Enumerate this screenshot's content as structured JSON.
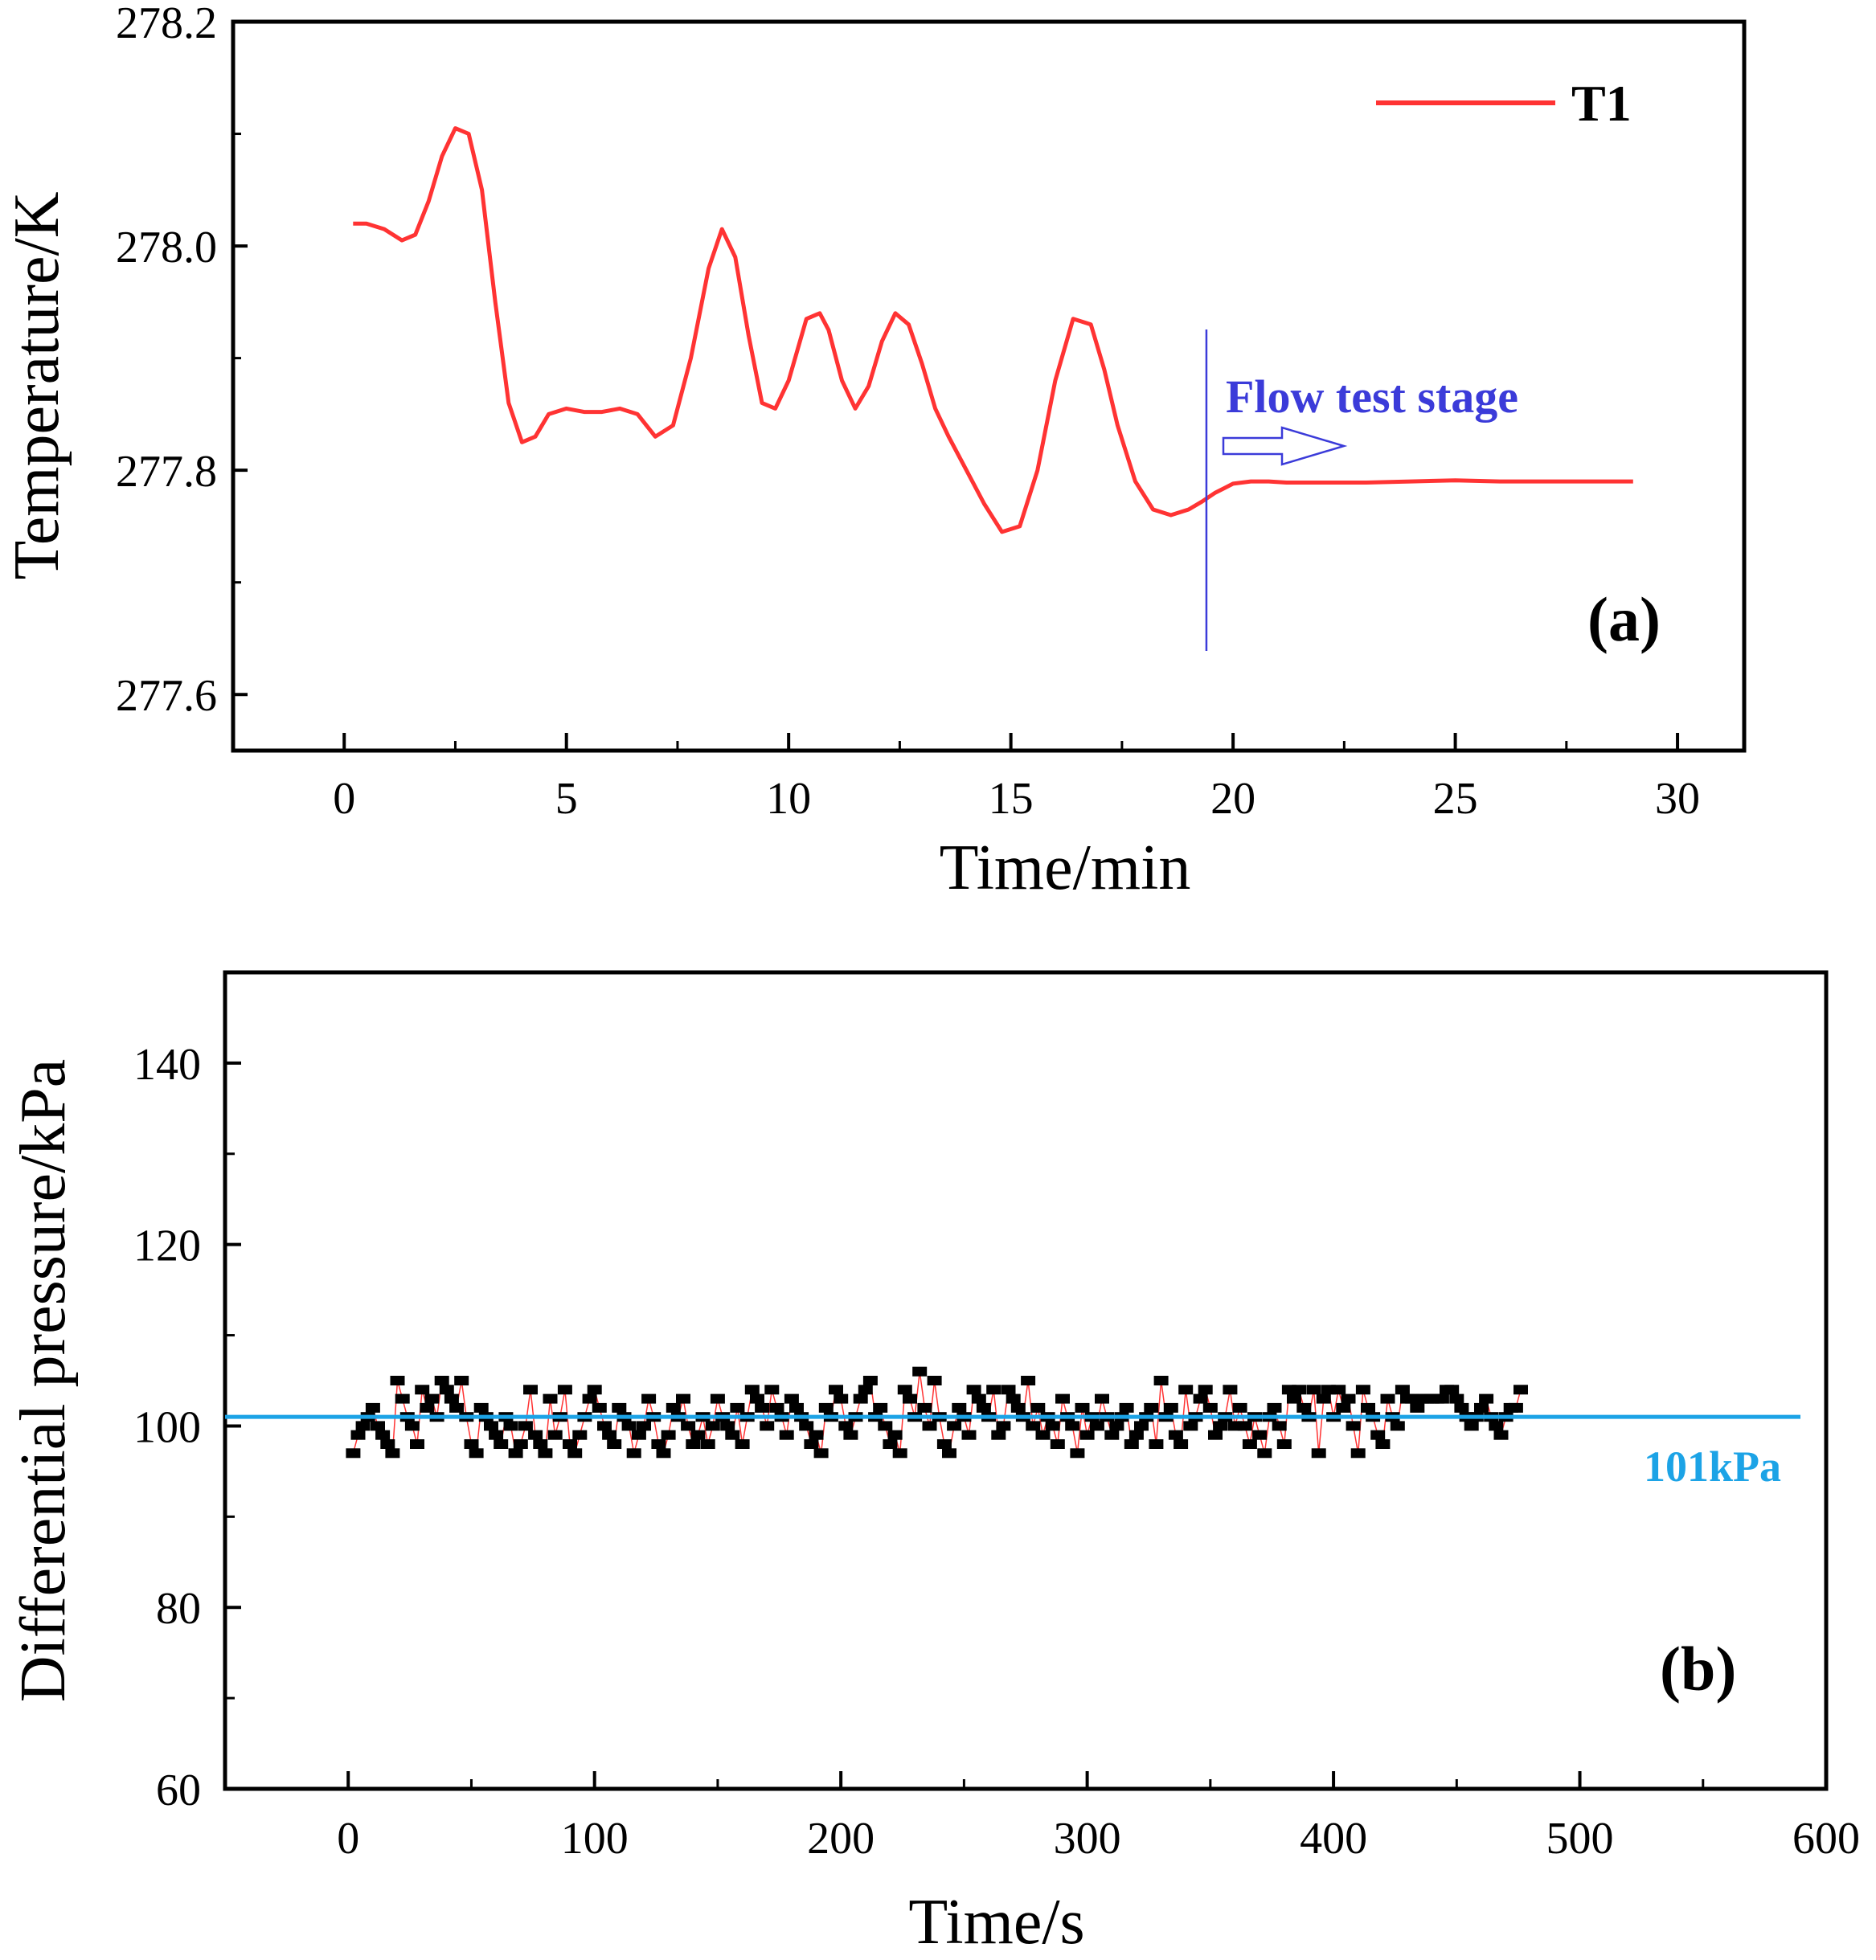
{
  "chart_data": [
    {
      "type": "line",
      "panel_label": "(a)",
      "xlabel": "Time/min",
      "ylabel": "Temperature/K",
      "xlim": [
        -2.5,
        31.5
      ],
      "ylim": [
        277.55,
        278.2
      ],
      "x_ticks": [
        0,
        5,
        10,
        15,
        20,
        25,
        30
      ],
      "x_tick_labels": [
        "0",
        "5",
        "10",
        "15",
        "20",
        "25",
        "30"
      ],
      "y_ticks": [
        277.6,
        277.8,
        278.0,
        278.2
      ],
      "y_tick_labels": [
        "277.6",
        "277.8",
        "278.0",
        "278.2"
      ],
      "legend_position": "top-right",
      "series": [
        {
          "name": "T1",
          "color": "#ff3333",
          "x": [
            0.2,
            0.5,
            0.9,
            1.3,
            1.6,
            1.9,
            2.2,
            2.5,
            2.8,
            3.1,
            3.4,
            3.7,
            4.0,
            4.3,
            4.6,
            5.0,
            5.4,
            5.8,
            6.2,
            6.6,
            7.0,
            7.4,
            7.8,
            8.2,
            8.5,
            8.8,
            9.1,
            9.4,
            9.7,
            10.0,
            10.4,
            10.7,
            10.9,
            11.2,
            11.5,
            11.8,
            12.1,
            12.4,
            12.7,
            13.0,
            13.3,
            13.6,
            14.0,
            14.4,
            14.8,
            15.2,
            15.6,
            16.0,
            16.4,
            16.8,
            17.1,
            17.4,
            17.8,
            18.2,
            18.6,
            19.0,
            19.3,
            19.6,
            20.0,
            20.4,
            20.8,
            21.2,
            22.0,
            23.0,
            24.0,
            25.0,
            26.0,
            27.0,
            28.0,
            29.0
          ],
          "values": [
            278.02,
            278.02,
            278.015,
            278.005,
            278.01,
            278.04,
            278.08,
            278.105,
            278.1,
            278.05,
            277.95,
            277.86,
            277.825,
            277.83,
            277.85,
            277.855,
            277.852,
            277.852,
            277.855,
            277.85,
            277.83,
            277.84,
            277.9,
            277.98,
            278.015,
            277.99,
            277.92,
            277.86,
            277.855,
            277.88,
            277.935,
            277.94,
            277.925,
            277.88,
            277.855,
            277.875,
            277.915,
            277.94,
            277.93,
            277.895,
            277.855,
            277.83,
            277.8,
            277.77,
            277.745,
            277.75,
            277.8,
            277.88,
            277.935,
            277.93,
            277.89,
            277.84,
            277.79,
            277.765,
            277.76,
            277.765,
            277.772,
            277.78,
            277.788,
            277.79,
            277.79,
            277.789,
            277.789,
            277.789,
            277.79,
            277.791,
            277.79,
            277.79,
            277.79,
            277.79
          ]
        }
      ],
      "annotations": {
        "stage_label": "Flow test stage",
        "stage_line_x": 19.4
      },
      "colors": {
        "annotation": "#3b3bd9",
        "line": "#ff3333"
      }
    },
    {
      "type": "scatter",
      "panel_label": "(b)",
      "xlabel": "Time/s",
      "ylabel": "Differential pressure/kPa",
      "xlim": [
        -50,
        600
      ],
      "ylim": [
        60,
        150
      ],
      "x_ticks": [
        0,
        100,
        200,
        300,
        400,
        500,
        600
      ],
      "x_tick_labels": [
        "0",
        "100",
        "200",
        "300",
        "400",
        "500",
        "600"
      ],
      "y_ticks": [
        60,
        80,
        100,
        120,
        140
      ],
      "y_tick_labels": [
        "60",
        "80",
        "100",
        "120",
        "140"
      ],
      "reference_line": {
        "value": 101,
        "label": "101kPa",
        "color": "#1ca3e6"
      },
      "series": [
        {
          "name": "Differential pressure",
          "color": "#000000",
          "connector_color": "#ff3333",
          "x_start": 2,
          "x_step": 2,
          "values": [
            97,
            99,
            100,
            101,
            102,
            100,
            99,
            98,
            97,
            105,
            103,
            101,
            100,
            98,
            104,
            102,
            103,
            101,
            105,
            104,
            103,
            102,
            105,
            101,
            98,
            97,
            102,
            101,
            100,
            99,
            98,
            101,
            100,
            97,
            98,
            100,
            104,
            99,
            98,
            97,
            103,
            99,
            101,
            104,
            98,
            97,
            99,
            101,
            103,
            104,
            102,
            100,
            99,
            98,
            102,
            101,
            100,
            97,
            99,
            100,
            103,
            101,
            98,
            97,
            99,
            102,
            101,
            103,
            100,
            98,
            99,
            101,
            98,
            100,
            103,
            101,
            100,
            99,
            102,
            98,
            101,
            104,
            103,
            102,
            100,
            104,
            102,
            101,
            99,
            103,
            102,
            101,
            100,
            98,
            99,
            97,
            102,
            101,
            104,
            103,
            100,
            99,
            101,
            103,
            104,
            105,
            101,
            102,
            100,
            98,
            99,
            97,
            104,
            103,
            101,
            106,
            102,
            100,
            105,
            101,
            98,
            97,
            100,
            102,
            101,
            99,
            104,
            103,
            102,
            101,
            104,
            99,
            100,
            104,
            103,
            102,
            101,
            105,
            100,
            102,
            99,
            101,
            100,
            98,
            103,
            101,
            100,
            97,
            102,
            99,
            101,
            100,
            103,
            101,
            99,
            100,
            101,
            102,
            98,
            99,
            100,
            101,
            102,
            98,
            105,
            101,
            102,
            99,
            98,
            104,
            100,
            101,
            103,
            104,
            102,
            99,
            100,
            101,
            104,
            100,
            102,
            100,
            98,
            101,
            99,
            97,
            101,
            102,
            100,
            98,
            104,
            103,
            104,
            102,
            101,
            104,
            97,
            103,
            104,
            101,
            104,
            102,
            103,
            100,
            97,
            104,
            102,
            101,
            99,
            98,
            103,
            101,
            100,
            104,
            103,
            103,
            102,
            103,
            103,
            103,
            103,
            103,
            104,
            104,
            103,
            102,
            101,
            100,
            101,
            102,
            103,
            101,
            100,
            99,
            101,
            102,
            102,
            104
          ]
        }
      ]
    }
  ]
}
